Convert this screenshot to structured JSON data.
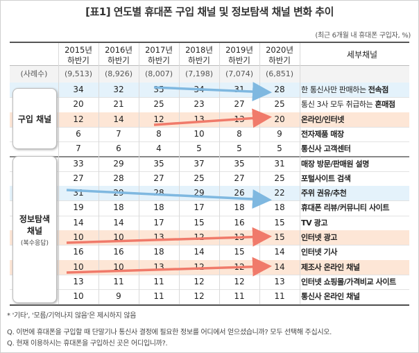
{
  "title": "[표1] 연도별 휴대폰 구입 채널 및 정보탐색 채널 변화 추이",
  "unit_note": "(최근 6개월 내 휴대폰 구입자, %)",
  "header": {
    "periods": [
      {
        "year": "2015년",
        "half": "하반기"
      },
      {
        "year": "2016년",
        "half": "하반기"
      },
      {
        "year": "2017년",
        "half": "하반기"
      },
      {
        "year": "2018년",
        "half": "하반기"
      },
      {
        "year": "2019년",
        "half": "하반기"
      },
      {
        "year": "2020년",
        "half": "하반기"
      }
    ],
    "sub_channel_label": "세부채널"
  },
  "sample": {
    "label": "(사례수)",
    "counts": [
      "(9,513)",
      "(8,926)",
      "(8,007)",
      "(7,198)",
      "(7,074)",
      "(6,851)"
    ]
  },
  "categories": [
    {
      "name": "구입 채널",
      "note": ""
    },
    {
      "name_line1": "정보탐색",
      "name_line2": "채널",
      "note": "(복수응답)"
    }
  ],
  "rows": [
    {
      "values": [
        "34",
        "32",
        "35",
        "34",
        "31",
        "28"
      ],
      "label_pre": "한 통신사만 판매하는 ",
      "label_bold": "전속점",
      "highlight": "blue"
    },
    {
      "values": [
        "20",
        "21",
        "25",
        "23",
        "27",
        "25"
      ],
      "label_pre": "통신 3사 모두 취급하는 ",
      "label_bold": "혼매점",
      "highlight": ""
    },
    {
      "values": [
        "12",
        "14",
        "12",
        "13",
        "13",
        "20"
      ],
      "label_pre": "",
      "label_bold": "온라인/인터넷",
      "highlight": "peach"
    },
    {
      "values": [
        "6",
        "7",
        "8",
        "10",
        "8",
        "9"
      ],
      "label_pre": "",
      "label_bold": "전자제품 매장",
      "highlight": ""
    },
    {
      "values": [
        "7",
        "6",
        "4",
        "5",
        "5",
        "5"
      ],
      "label_pre": "",
      "label_bold": "통신사 고객센터",
      "highlight": ""
    },
    {
      "values": [
        "33",
        "29",
        "35",
        "37",
        "35",
        "31"
      ],
      "label_pre": "",
      "label_bold": "매장 방문/판매원 설명",
      "highlight": ""
    },
    {
      "values": [
        "27",
        "28",
        "27",
        "25",
        "27",
        "25"
      ],
      "label_pre": "",
      "label_bold": "포털사이트 검색",
      "highlight": ""
    },
    {
      "values": [
        "31",
        "29",
        "28",
        "29",
        "26",
        "22"
      ],
      "label_pre": "",
      "label_bold": "주위 권유/추천",
      "highlight": "blue"
    },
    {
      "values": [
        "19",
        "18",
        "18",
        "17",
        "18",
        "18"
      ],
      "label_pre": "",
      "label_bold": "휴대폰 리뷰/커뮤니티 사이트",
      "highlight": ""
    },
    {
      "values": [
        "14",
        "14",
        "17",
        "15",
        "16",
        "15"
      ],
      "label_pre": "",
      "label_bold": "TV 광고",
      "highlight": ""
    },
    {
      "values": [
        "10",
        "10",
        "13",
        "12",
        "13",
        "15"
      ],
      "label_pre": "",
      "label_bold": "인터넷 광고",
      "highlight": "peach"
    },
    {
      "values": [
        "16",
        "16",
        "18",
        "14",
        "15",
        "14"
      ],
      "label_pre": "",
      "label_bold": "인터넷 기사",
      "highlight": ""
    },
    {
      "values": [
        "10",
        "10",
        "13",
        "12",
        "12",
        "14"
      ],
      "label_pre": "",
      "label_bold": "제조사 온라인 채널",
      "highlight": "peach"
    },
    {
      "values": [
        "13",
        "11",
        "11",
        "12",
        "12",
        "13"
      ],
      "label_pre": "",
      "label_bold": "인터넷 쇼핑몰/가격비교 사이트",
      "highlight": ""
    },
    {
      "values": [
        "10",
        "9",
        "11",
        "12",
        "11",
        "11"
      ],
      "label_pre": "",
      "label_bold": "통신사 온라인 채널",
      "highlight": ""
    }
  ],
  "footnotes": [
    "* '기타', '모름/기억나지 않음'은 제시하지 않음",
    "Q. 이번에 휴대폰을 구입할 때 단말기나 통신사 결정에 필요한 정보를 어디에서 얻으셨습니까? 모두 선택해 주십시오.",
    "Q. 현재 이용하시는 휴대폰을 구입하신 곳은 어디입니까?."
  ],
  "colors": {
    "blue_highlight": "#e4f2fb",
    "peach_highlight": "#fde6d6",
    "blue_arrow": "#7fb8e0",
    "red_arrow": "#f07a6a"
  }
}
